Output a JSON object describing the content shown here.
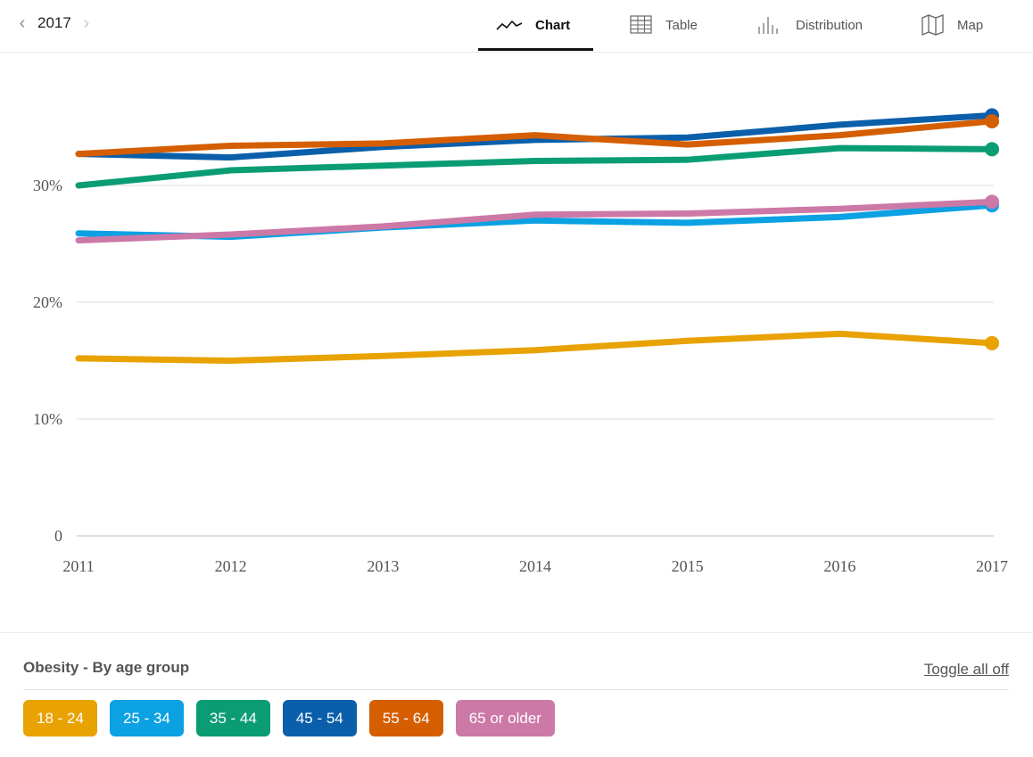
{
  "nav": {
    "year": "2017",
    "prev_icon": "chevron-left-icon",
    "next_icon": "chevron-right-icon"
  },
  "tabs": [
    {
      "label": "Chart",
      "icon": "line-chart-icon",
      "active": true
    },
    {
      "label": "Table",
      "icon": "table-icon",
      "active": false
    },
    {
      "label": "Distribution",
      "icon": "distribution-icon",
      "active": false
    },
    {
      "label": "Map",
      "icon": "map-icon",
      "active": false
    }
  ],
  "legend": {
    "title": "Obesity - By age group",
    "toggle_label": "Toggle all off"
  },
  "chart_data": {
    "type": "line",
    "x": [
      "2011",
      "2012",
      "2013",
      "2014",
      "2015",
      "2016",
      "2017"
    ],
    "y_ticks": [
      "0",
      "10%",
      "20%",
      "30%"
    ],
    "ylim": [
      0,
      37.5
    ],
    "grid": true,
    "series": [
      {
        "name": "18 - 24",
        "color": "#E8A202",
        "values": [
          15.2,
          15.0,
          15.4,
          15.9,
          16.7,
          17.3,
          16.5
        ]
      },
      {
        "name": "25 - 34",
        "color": "#0BA1E3",
        "values": [
          25.9,
          25.6,
          26.4,
          27.0,
          26.8,
          27.3,
          28.3
        ]
      },
      {
        "name": "35 - 44",
        "color": "#0A9D74",
        "values": [
          30.0,
          31.3,
          31.7,
          32.1,
          32.2,
          33.2,
          33.1
        ]
      },
      {
        "name": "45 - 54",
        "color": "#0B5FAA",
        "values": [
          32.7,
          32.4,
          33.3,
          33.9,
          34.1,
          35.2,
          36.0
        ]
      },
      {
        "name": "55 - 64",
        "color": "#D55E00",
        "values": [
          32.7,
          33.4,
          33.6,
          34.3,
          33.5,
          34.3,
          35.5
        ]
      },
      {
        "name": "65 or older",
        "color": "#CC79A7",
        "values": [
          25.3,
          25.8,
          26.5,
          27.5,
          27.6,
          28.0,
          28.6
        ]
      }
    ]
  }
}
